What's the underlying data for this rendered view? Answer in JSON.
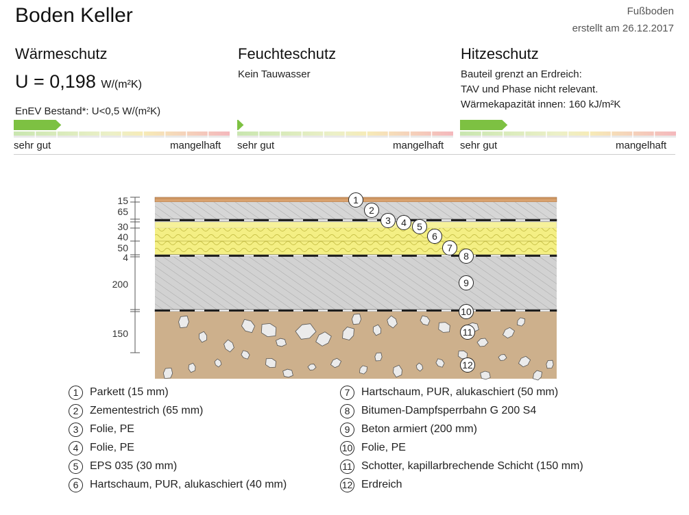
{
  "title": "Boden Keller",
  "category": "Fußboden",
  "created": "erstellt am 26.12.2017",
  "sections": [
    {
      "title": "Wärmeschutz",
      "u_value": "U = 0,198",
      "u_unit": "W/(m²K)",
      "requirement": "EnEV Bestand*: U<0,5 W/(m²K)",
      "rating_fraction": 0.22,
      "label_good": "sehr gut",
      "label_bad": "mangelhaft"
    },
    {
      "title": "Feuchteschutz",
      "lines": [
        "Kein Tauwasser"
      ],
      "rating_fraction": 0.03,
      "label_good": "sehr gut",
      "label_bad": "mangelhaft"
    },
    {
      "title": "Hitzeschutz",
      "lines": [
        "Bauteil grenzt an Erdreich:",
        "TAV und Phase nicht relevant.",
        "Wärmekapazität innen: 160 kJ/m²K"
      ],
      "rating_fraction": 0.22,
      "label_good": "sehr gut",
      "label_bad": "mangelhaft"
    }
  ],
  "dimensions": [
    "15",
    "65",
    "30",
    "40",
    "50",
    "4",
    "200",
    "150"
  ],
  "layers": [
    {
      "num": "1",
      "name": "Parkett (15 mm)"
    },
    {
      "num": "2",
      "name": "Zementestrich (65 mm)"
    },
    {
      "num": "3",
      "name": "Folie, PE"
    },
    {
      "num": "4",
      "name": "Folie, PE"
    },
    {
      "num": "5",
      "name": "EPS 035 (30 mm)"
    },
    {
      "num": "6",
      "name": "Hartschaum, PUR, alukaschiert (40 mm)"
    },
    {
      "num": "7",
      "name": "Hartschaum, PUR, alukaschiert (50 mm)"
    },
    {
      "num": "8",
      "name": "Bitumen-Dampfsperrbahn G 200 S4"
    },
    {
      "num": "9",
      "name": "Beton armiert (200 mm)"
    },
    {
      "num": "10",
      "name": "Folie, PE"
    },
    {
      "num": "11",
      "name": "Schotter, kapillarbrechende Schicht (150 mm)"
    },
    {
      "num": "12",
      "name": "Erdreich"
    }
  ],
  "colors": {
    "rating_green": "#7dc142",
    "parkett": "#d9a26e",
    "concrete": "#d4d4d4",
    "insulation": "#f3ee82",
    "gravel_bg": "#cdb08c"
  }
}
